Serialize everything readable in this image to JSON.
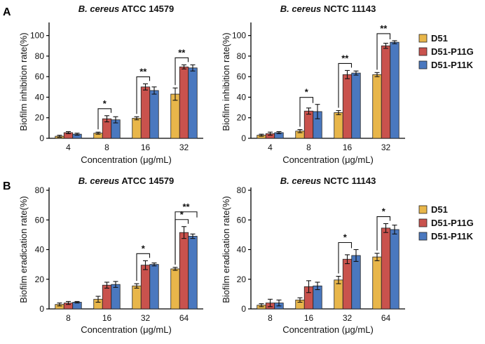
{
  "panels": [
    {
      "letter": "A",
      "letter_name": "panel-letter-a"
    },
    {
      "letter": "B",
      "letter_name": "panel-letter-b"
    }
  ],
  "colors": {
    "D51": "#E8B64A",
    "D51-P11G": "#C9524D",
    "D51-P11K": "#4A78BF"
  },
  "chart_data": [
    {
      "type": "bar",
      "panel": "A",
      "title_italic": "B. cereus",
      "title_rest": " ATCC 14579",
      "xlabel": "Concentration (μg/mL)",
      "ylabel": "Biofilm inhibition rate(%)",
      "ylim": [
        0,
        110
      ],
      "yticks": [
        0,
        20,
        40,
        60,
        80,
        100
      ],
      "categories": [
        "4",
        "8",
        "16",
        "32"
      ],
      "series": [
        {
          "name": "D51",
          "values": [
            2,
            5,
            19.5,
            43
          ],
          "errors": [
            1,
            1,
            1.5,
            6
          ]
        },
        {
          "name": "D51-P11G",
          "values": [
            5.5,
            19,
            50,
            69.5
          ],
          "errors": [
            1,
            3,
            3,
            2
          ]
        },
        {
          "name": "D51-P11K",
          "values": [
            4,
            18,
            46.5,
            68.5
          ],
          "errors": [
            1,
            3,
            3.5,
            3
          ]
        }
      ],
      "significance": [
        {
          "label": "*",
          "category": 1,
          "from": "D51",
          "to": [
            "D51-P11G"
          ]
        },
        {
          "label": "**",
          "category": 2,
          "from": "D51",
          "to": [
            "D51-P11G"
          ]
        },
        {
          "label": "**",
          "category": 3,
          "from": "D51",
          "to": [
            "D51-P11G"
          ]
        }
      ]
    },
    {
      "type": "bar",
      "panel": "A",
      "title_italic": "B. cereus",
      "title_rest": " NCTC 11143",
      "xlabel": "Concentration (μg/mL)",
      "ylabel": "Biofilm inhibition rate(%)",
      "ylim": [
        0,
        110
      ],
      "yticks": [
        0,
        20,
        40,
        60,
        80,
        100
      ],
      "categories": [
        "4",
        "8",
        "16",
        "32"
      ],
      "series": [
        {
          "name": "D51",
          "values": [
            3,
            7,
            25,
            62
          ],
          "errors": [
            1,
            1.5,
            2,
            2
          ]
        },
        {
          "name": "D51-P11G",
          "values": [
            4.5,
            26.5,
            62,
            90
          ],
          "errors": [
            1.5,
            3,
            4,
            2.5
          ]
        },
        {
          "name": "D51-P11K",
          "values": [
            5.5,
            26,
            63.5,
            93.5
          ],
          "errors": [
            1,
            7,
            2,
            1.5
          ]
        }
      ],
      "significance": [
        {
          "label": "*",
          "category": 1,
          "from": "D51",
          "to": [
            "D51-P11G"
          ]
        },
        {
          "label": "**",
          "category": 2,
          "from": "D51",
          "to": [
            "D51-P11G"
          ]
        },
        {
          "label": "**",
          "category": 3,
          "from": "D51",
          "to": [
            "D51-P11G"
          ]
        }
      ]
    },
    {
      "type": "bar",
      "panel": "B",
      "title_italic": "B. cereus",
      "title_rest": " ATCC 14579",
      "xlabel": "Concentration  (μg/mL)",
      "ylabel": "Biofilm eradication rate(%)",
      "ylim": [
        0,
        80
      ],
      "yticks": [
        0,
        20,
        40,
        60,
        80
      ],
      "categories": [
        "8",
        "16",
        "32",
        "64"
      ],
      "series": [
        {
          "name": "D51",
          "values": [
            3,
            6.5,
            15.5,
            27
          ],
          "errors": [
            1,
            2,
            1.5,
            1
          ]
        },
        {
          "name": "D51-P11G",
          "values": [
            4,
            16,
            29.5,
            51.5
          ],
          "errors": [
            1,
            2,
            3,
            4
          ]
        },
        {
          "name": "D51-P11K",
          "values": [
            4.5,
            16.5,
            30,
            49
          ],
          "errors": [
            0.5,
            2,
            1,
            1.5
          ]
        }
      ],
      "significance": [
        {
          "label": "*",
          "category": 2,
          "from": "D51",
          "to": [
            "D51-P11G"
          ]
        },
        {
          "label": "*",
          "category": 3,
          "from": "D51",
          "to": [
            "D51-P11G"
          ]
        },
        {
          "label": "**",
          "category": 3,
          "from": "D51",
          "to": [
            "D51-P11K"
          ]
        }
      ]
    },
    {
      "type": "bar",
      "panel": "B",
      "title_italic": "B. cereus",
      "title_rest": " NCTC 11143",
      "xlabel": "Concentration  (μg/mL)",
      "ylabel": "Biofilm eradication rate(%)",
      "ylim": [
        0,
        80
      ],
      "yticks": [
        0,
        20,
        40,
        60,
        80
      ],
      "categories": [
        "8",
        "16",
        "32",
        "64"
      ],
      "series": [
        {
          "name": "D51",
          "values": [
            2.5,
            6,
            19.5,
            35
          ],
          "errors": [
            1,
            1.5,
            2.5,
            2.5
          ]
        },
        {
          "name": "D51-P11G",
          "values": [
            4,
            15,
            33.5,
            54.5
          ],
          "errors": [
            2.5,
            4,
            3,
            3
          ]
        },
        {
          "name": "D51-P11K",
          "values": [
            4,
            15.5,
            36,
            53.5
          ],
          "errors": [
            2,
            2.5,
            4,
            3
          ]
        }
      ],
      "significance": [
        {
          "label": "*",
          "category": 2,
          "from": "D51",
          "to": [
            "D51-P11G"
          ]
        },
        {
          "label": "*",
          "category": 3,
          "from": "D51",
          "to": [
            "D51-P11G"
          ]
        }
      ]
    }
  ],
  "legends": [
    {
      "items": [
        "D51",
        "D51-P11G",
        "D51-P11K"
      ]
    },
    {
      "items": [
        "D51",
        "D51-P11G",
        "D51-P11K"
      ]
    }
  ]
}
